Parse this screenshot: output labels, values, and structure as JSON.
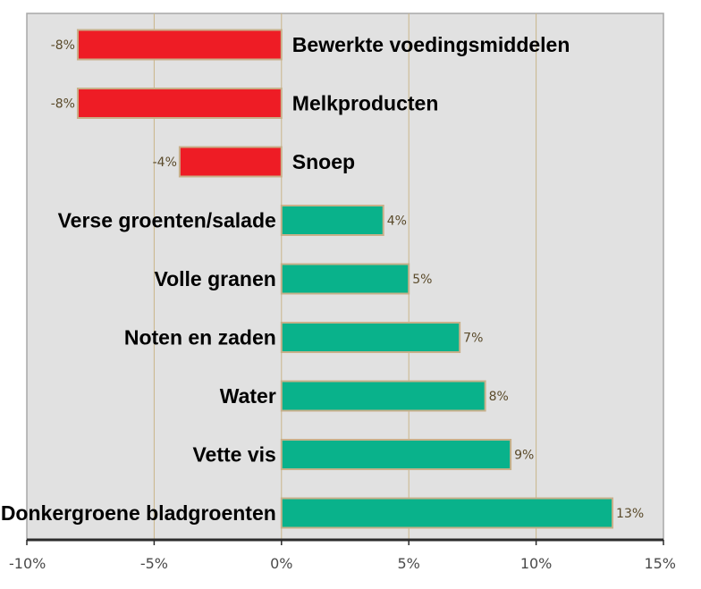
{
  "chart_data": {
    "type": "bar",
    "orientation": "horizontal",
    "title": "",
    "xlabel": "",
    "ylabel": "",
    "xlim": [
      -10,
      15
    ],
    "grid": true,
    "categories": [
      "Bewerkte voedingsmiddelen",
      "Melkproducten",
      "Snoep",
      "Verse groenten/salade",
      "Volle granen",
      "Noten en zaden",
      "Water",
      "Vette vis",
      "Donkergroene bladgroenten"
    ],
    "values": [
      -8,
      -8,
      -4,
      4,
      5,
      7,
      8,
      9,
      13
    ],
    "value_labels": [
      "-8%",
      "-8%",
      "-4%",
      "4%",
      "5%",
      "7%",
      "8%",
      "9%",
      "13%"
    ],
    "x_ticks": [
      -10,
      -5,
      0,
      5,
      10,
      15
    ],
    "x_tick_labels": [
      "-10%",
      "-5%",
      "0%",
      "5%",
      "10%",
      "15%"
    ]
  },
  "colors": {
    "negative": "#ee1c25",
    "positive": "#09b28b",
    "bar_border": "#c8b08a",
    "plot_background": "#e1e1e1",
    "plot_border": "#a8a8a8",
    "grid": "#c9b68a",
    "axis": "#2b2b2b"
  }
}
